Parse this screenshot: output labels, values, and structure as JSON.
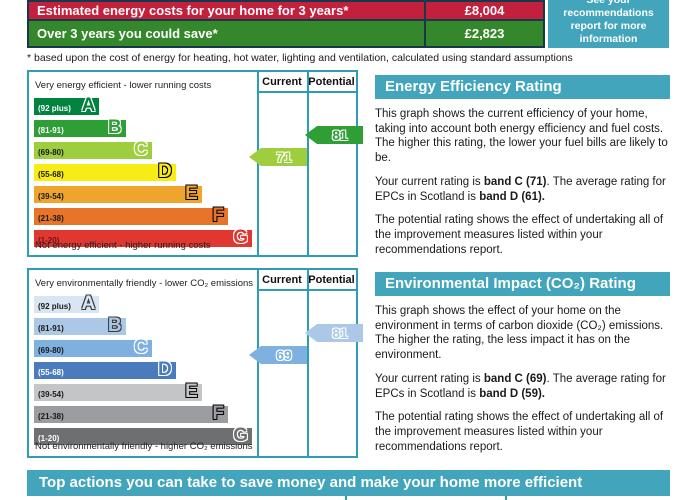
{
  "header_table": {
    "rows": [
      {
        "label": "Estimated energy costs for your home for 3 years*",
        "value": "£8,004",
        "bg": "#c2203c"
      },
      {
        "label": "Over 3 years you could save*",
        "value": "£2,823",
        "bg": "#35872b"
      }
    ],
    "info_box": {
      "text": "See your recommendations report for more information",
      "bg": "#42a5bb"
    },
    "footnote": "* based upon the cost of energy for heating, hot water, lighting and ventilation, calculated using standard assumptions"
  },
  "chart_data": [
    {
      "type": "bar",
      "title": "Energy Efficiency Rating",
      "top_caption": "Very energy efficient - lower running costs",
      "bottom_caption": "Not energy efficient - higher running costs",
      "columns": [
        "Current",
        "Potential"
      ],
      "bands": [
        {
          "letter": "A",
          "range": "(92 plus)",
          "width_pct": 30,
          "color": "#00833f",
          "letter_outline": "#ffffff",
          "range_color": "#ffffff"
        },
        {
          "letter": "B",
          "range": "(81-91)",
          "width_pct": 42,
          "color": "#2f9e35",
          "letter_outline": "#ffffff",
          "range_color": "#ffffff"
        },
        {
          "letter": "C",
          "range": "(69-80)",
          "width_pct": 54,
          "color": "#9ecd3e",
          "letter_outline": "#ffffff",
          "range_color": "#1a1a1a"
        },
        {
          "letter": "D",
          "range": "(55-68)",
          "width_pct": 65,
          "color": "#f7ec13",
          "letter_outline": "#000000",
          "range_color": "#1a1a1a"
        },
        {
          "letter": "E",
          "range": "(39-54)",
          "width_pct": 77,
          "color": "#eea42d",
          "letter_outline": "#000000",
          "range_color": "#1a1a1a"
        },
        {
          "letter": "F",
          "range": "(21-38)",
          "width_pct": 89,
          "color": "#e8742a",
          "letter_outline": "#000000",
          "range_color": "#1a1a1a"
        },
        {
          "letter": "G",
          "range": "(1-20)",
          "width_pct": 100,
          "color": "#e03731",
          "letter_outline": "#ffffff",
          "range_color": "#6b1320"
        }
      ],
      "current": {
        "value": 71,
        "band": "C",
        "band_index": 2,
        "color": "#9ecd3e"
      },
      "potential": {
        "value": 81,
        "band": "B",
        "band_index": 1,
        "color": "#2f9e35"
      }
    },
    {
      "type": "bar",
      "title": "Environmental Impact (CO₂) Rating",
      "top_caption": "Very environmentally friendly - lower CO₂ emissions",
      "bottom_caption": "Not environmentally friendly - higher CO₂ emissions",
      "columns": [
        "Current",
        "Potential"
      ],
      "bands": [
        {
          "letter": "A",
          "range": "(92 plus)",
          "width_pct": 30,
          "color": "#d8e6f3",
          "letter_outline": "#3c3c3c",
          "range_color": "#1a1a1a"
        },
        {
          "letter": "B",
          "range": "(81-91)",
          "width_pct": 42,
          "color": "#abc9e7",
          "letter_outline": "#3c3c3c",
          "range_color": "#1a1a1a"
        },
        {
          "letter": "C",
          "range": "(69-80)",
          "width_pct": 54,
          "color": "#7eb1df",
          "letter_outline": "#ffffff",
          "range_color": "#1a1a1a"
        },
        {
          "letter": "D",
          "range": "(55-68)",
          "width_pct": 65,
          "color": "#4a7cbd",
          "letter_outline": "#ffffff",
          "range_color": "#ffffff"
        },
        {
          "letter": "E",
          "range": "(39-54)",
          "width_pct": 77,
          "color": "#c4c5c7",
          "letter_outline": "#000000",
          "range_color": "#1a1a1a"
        },
        {
          "letter": "F",
          "range": "(21-38)",
          "width_pct": 89,
          "color": "#9c9da0",
          "letter_outline": "#000000",
          "range_color": "#1a1a1a"
        },
        {
          "letter": "G",
          "range": "(1-20)",
          "width_pct": 100,
          "color": "#6e6f71",
          "letter_outline": "#ffffff",
          "range_color": "#ffffff"
        }
      ],
      "current": {
        "value": 69,
        "band": "C",
        "band_index": 2,
        "color": "#7eb1df"
      },
      "potential": {
        "value": 81,
        "band": "B",
        "band_index": 1,
        "color": "#abc9e7"
      }
    }
  ],
  "panels": [
    {
      "title": "Energy Efficiency Rating",
      "paragraphs": [
        [
          {
            "t": "This graph shows the current efficiency of your home, taking into account both energy efficiency and fuel costs. The higher this rating, the lower your fuel bills are likely to be."
          }
        ],
        [
          {
            "t": "Your current rating is "
          },
          {
            "t": "band C (71)",
            "b": true
          },
          {
            "t": ". The average rating for EPCs in Scotland is "
          },
          {
            "t": "band D (61).",
            "b": true
          }
        ],
        [
          {
            "t": "The potential rating shows the effect of undertaking all of the improvement measures listed within your recommendations report."
          }
        ]
      ]
    },
    {
      "title": "Environmental Impact (CO₂) Rating",
      "paragraphs": [
        [
          {
            "t": "This graph shows the effect of your home on the environment in terms of carbon dioxide (CO₂) emissions. The higher the rating, the less impact it has on the environment."
          }
        ],
        [
          {
            "t": "Your current rating is "
          },
          {
            "t": "band C (69)",
            "b": true
          },
          {
            "t": ". The average rating for EPCs in Scotland is "
          },
          {
            "t": "band D (59).",
            "b": true
          }
        ],
        [
          {
            "t": "The potential rating shows the effect of undertaking all of the improvement measures listed within your recommendations report."
          }
        ]
      ]
    }
  ],
  "bottom_bar": {
    "text": "Top actions you can take to save money and make your home more efficient"
  },
  "colors": {
    "teal": "#42a5bb",
    "chart_border": "#2d9db4",
    "table_border": "#16384a",
    "cost_red": "#c2203c",
    "save_green": "#35872b",
    "text": "#1a1a1a"
  }
}
